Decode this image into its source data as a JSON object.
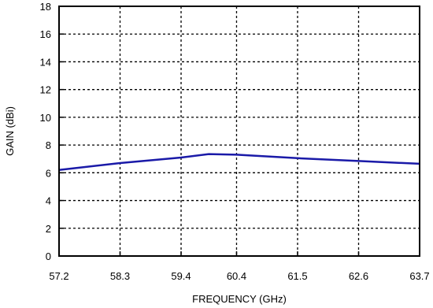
{
  "chart_data": {
    "type": "line",
    "title": "",
    "xlabel": "FREQUENCY (GHz)",
    "ylabel": "GAIN (dBi)",
    "xlim": [
      57.2,
      63.7
    ],
    "ylim": [
      0,
      18
    ],
    "x_ticks": [
      57.2,
      58.3,
      59.4,
      60.4,
      61.5,
      62.6,
      63.7
    ],
    "x_tick_labels": [
      "57.2",
      "58.3",
      "59.4",
      "60.4",
      "61.5",
      "62.6",
      "63.7"
    ],
    "y_ticks": [
      0,
      2,
      4,
      6,
      8,
      10,
      12,
      14,
      16,
      18
    ],
    "y_tick_labels": [
      "0",
      "2",
      "4",
      "6",
      "8",
      "10",
      "12",
      "14",
      "16",
      "18"
    ],
    "grid": true,
    "grid_style": "dotted",
    "series": [
      {
        "color": "#1a1aa8",
        "x": [
          57.2,
          58.3,
          59.4,
          59.9,
          60.4,
          61.5,
          62.6,
          63.7
        ],
        "y": [
          6.2,
          6.7,
          7.1,
          7.35,
          7.3,
          7.05,
          6.85,
          6.65
        ]
      }
    ]
  }
}
